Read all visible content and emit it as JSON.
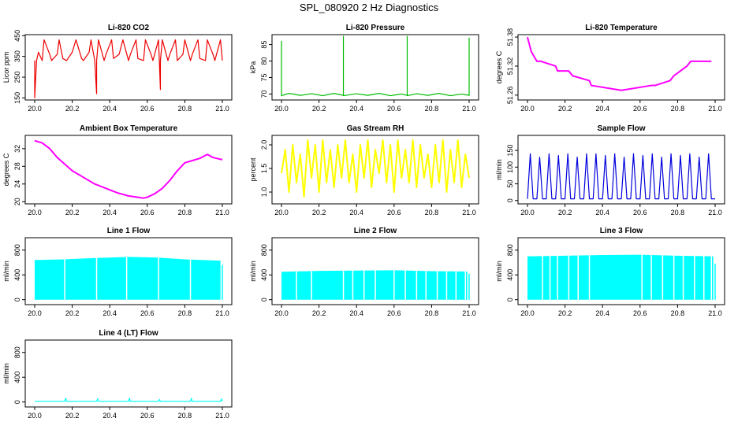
{
  "page": {
    "title": "SPL_080920  2 Hz Diagnostics"
  },
  "colors": {
    "red": "#ee0000",
    "green": "#00bb00",
    "magenta": "#ff00ff",
    "yellow": "#ffff00",
    "blue": "#0000dd",
    "cyan": "#00ffff",
    "axis": "#000000"
  },
  "chart_data": [
    {
      "type": "line",
      "title": "Li-820 CO2",
      "ylabel": "Licor ppm",
      "color": "red",
      "xlim": [
        20.0,
        21.0
      ],
      "x_ticks": [
        "20.0",
        "20.2",
        "20.4",
        "20.6",
        "20.8",
        "21.0"
      ],
      "ylim": [
        140,
        455
      ],
      "y_ticks": [
        "150",
        "250",
        "350",
        "450"
      ],
      "series": [
        {
          "name": "CO2",
          "x": [
            20.0,
            20.0,
            20.01,
            20.02,
            20.04,
            20.05,
            20.08,
            20.09,
            20.12,
            20.13,
            20.15,
            20.17,
            20.2,
            20.22,
            20.25,
            20.26,
            20.29,
            20.3,
            20.32,
            20.33,
            20.33,
            20.34,
            20.37,
            20.38,
            20.41,
            20.42,
            20.45,
            20.47,
            20.5,
            20.51,
            20.54,
            20.55,
            20.58,
            20.59,
            20.62,
            20.63,
            20.66,
            20.67,
            20.67,
            20.68,
            20.71,
            20.72,
            20.75,
            20.76,
            20.79,
            20.8,
            20.83,
            20.84,
            20.87,
            20.88,
            20.91,
            20.92,
            20.95,
            20.96,
            20.99,
            21.0
          ],
          "values": [
            330,
            150,
            330,
            370,
            330,
            430,
            360,
            330,
            360,
            430,
            340,
            330,
            370,
            430,
            340,
            330,
            370,
            430,
            330,
            170,
            330,
            430,
            330,
            360,
            430,
            340,
            360,
            430,
            330,
            360,
            430,
            340,
            330,
            430,
            360,
            330,
            430,
            190,
            330,
            430,
            330,
            360,
            430,
            330,
            360,
            430,
            330,
            360,
            430,
            340,
            330,
            430,
            360,
            330,
            430,
            330
          ]
        }
      ]
    },
    {
      "type": "line",
      "title": "Li-820 Pressure",
      "ylabel": "kPa",
      "color": "green",
      "xlim": [
        20.0,
        21.0
      ],
      "x_ticks": [
        "20.0",
        "20.2",
        "20.4",
        "20.6",
        "20.8",
        "21.0"
      ],
      "ylim": [
        68.2,
        88.0
      ],
      "y_ticks": [
        "70",
        "75",
        "80",
        "85"
      ],
      "series": [
        {
          "name": "Pressure",
          "x": [
            20.0,
            20.0,
            20.0,
            20.04,
            20.1,
            20.16,
            20.22,
            20.28,
            20.33,
            20.33,
            20.33,
            20.4,
            20.46,
            20.52,
            20.58,
            20.64,
            20.67,
            20.67,
            20.67,
            20.72,
            20.78,
            20.84,
            20.9,
            20.96,
            21.0,
            21.0,
            21.0
          ],
          "values": [
            69.5,
            86.0,
            69.5,
            70.2,
            69.6,
            70.1,
            69.5,
            70.2,
            69.6,
            87.5,
            69.5,
            70.1,
            69.6,
            70.2,
            69.5,
            70.0,
            69.6,
            87.5,
            69.5,
            70.1,
            69.6,
            70.2,
            69.5,
            70.0,
            69.6,
            87.0,
            69.5
          ]
        }
      ]
    },
    {
      "type": "line",
      "title": "Li-820 Temperature",
      "ylabel": "degrees C",
      "color": "magenta",
      "xlim": [
        20.0,
        21.0
      ],
      "x_ticks": [
        "20.0",
        "20.2",
        "20.4",
        "20.6",
        "20.8",
        "21.0"
      ],
      "ylim": [
        51.25,
        51.385
      ],
      "y_ticks": [
        "51.26",
        "51.32",
        "51.38"
      ],
      "series": [
        {
          "name": "Temperature",
          "x": [
            20.0,
            20.02,
            20.05,
            20.07,
            20.15,
            20.16,
            20.22,
            20.24,
            20.33,
            20.34,
            20.5,
            20.66,
            20.68,
            20.76,
            20.78,
            20.85,
            20.87,
            20.98
          ],
          "values": [
            51.38,
            51.35,
            51.33,
            51.33,
            51.32,
            51.31,
            51.31,
            51.3,
            51.29,
            51.28,
            51.27,
            51.28,
            51.28,
            51.29,
            51.3,
            51.32,
            51.33,
            51.33
          ]
        }
      ]
    },
    {
      "type": "line",
      "title": "Ambient Box Temperature",
      "ylabel": "degrees C",
      "color": "magenta",
      "xlim": [
        20.0,
        21.0
      ],
      "x_ticks": [
        "20.0",
        "20.2",
        "20.4",
        "20.6",
        "20.8",
        "21.0"
      ],
      "ylim": [
        19.5,
        35.0
      ],
      "y_ticks": [
        "20",
        "24",
        "28",
        "32"
      ],
      "series": [
        {
          "name": "Ambient",
          "x": [
            20.0,
            20.04,
            20.08,
            20.12,
            20.16,
            20.2,
            20.26,
            20.32,
            20.38,
            20.44,
            20.5,
            20.55,
            20.58,
            20.6,
            20.64,
            20.68,
            20.72,
            20.76,
            20.8,
            20.84,
            20.88,
            20.92,
            20.95,
            21.0
          ],
          "values": [
            33.8,
            33.3,
            32.0,
            30.0,
            28.5,
            27.0,
            25.5,
            24.0,
            23.0,
            22.0,
            21.3,
            21.0,
            20.8,
            21.0,
            21.8,
            23.0,
            24.8,
            27.0,
            28.8,
            29.3,
            29.8,
            30.7,
            30.0,
            29.5
          ]
        }
      ]
    },
    {
      "type": "line",
      "title": "Gas Stream RH",
      "ylabel": "percent",
      "color": "yellow",
      "xlim": [
        20.0,
        21.0
      ],
      "x_ticks": [
        "20.0",
        "20.2",
        "20.4",
        "20.6",
        "20.8",
        "21.0"
      ],
      "ylim": [
        0.75,
        2.2
      ],
      "y_ticks": [
        "1.0",
        "1.5",
        "2.0"
      ],
      "series": [
        {
          "name": "RH",
          "x": [
            20.0,
            20.02,
            20.04,
            20.06,
            20.08,
            20.1,
            20.12,
            20.14,
            20.16,
            20.18,
            20.2,
            20.22,
            20.24,
            20.26,
            20.28,
            20.3,
            20.32,
            20.34,
            20.36,
            20.38,
            20.4,
            20.42,
            20.44,
            20.46,
            20.48,
            20.5,
            20.52,
            20.54,
            20.56,
            20.58,
            20.6,
            20.62,
            20.64,
            20.66,
            20.68,
            20.7,
            20.72,
            20.74,
            20.76,
            20.78,
            20.8,
            20.82,
            20.84,
            20.86,
            20.88,
            20.9,
            20.92,
            20.94,
            20.96,
            20.98,
            21.0
          ],
          "values": [
            1.4,
            1.9,
            1.0,
            2.0,
            1.2,
            1.8,
            0.9,
            2.1,
            1.3,
            2.0,
            1.0,
            2.1,
            1.2,
            1.9,
            1.1,
            2.0,
            1.3,
            2.1,
            1.2,
            1.8,
            1.0,
            2.0,
            1.3,
            2.1,
            1.1,
            1.9,
            1.4,
            2.1,
            1.2,
            2.0,
            1.0,
            2.1,
            1.3,
            1.9,
            1.2,
            2.1,
            1.1,
            2.0,
            1.3,
            1.8,
            1.1,
            2.0,
            1.2,
            2.1,
            1.0,
            1.9,
            1.2,
            2.1,
            1.1,
            1.8,
            1.3
          ]
        }
      ]
    },
    {
      "type": "line",
      "title": "Sample Flow",
      "ylabel": "ml/min",
      "color": "blue",
      "xlim": [
        20.0,
        21.0
      ],
      "x_ticks": [
        "20.0",
        "20.2",
        "20.4",
        "20.6",
        "20.8",
        "21.0"
      ],
      "ylim": [
        -10,
        195
      ],
      "y_ticks": [
        "0",
        "50",
        "100",
        "150"
      ],
      "series": [
        {
          "name": "Flow",
          "x": [
            20.0,
            20.015,
            20.03,
            20.05,
            20.065,
            20.08,
            20.1,
            20.115,
            20.13,
            20.15,
            20.165,
            20.18,
            20.2,
            20.215,
            20.23,
            20.25,
            20.265,
            20.28,
            20.3,
            20.315,
            20.33,
            20.35,
            20.365,
            20.38,
            20.4,
            20.415,
            20.43,
            20.45,
            20.465,
            20.48,
            20.5,
            20.515,
            20.53,
            20.55,
            20.565,
            20.58,
            20.6,
            20.615,
            20.63,
            20.65,
            20.665,
            20.68,
            20.7,
            20.715,
            20.73,
            20.75,
            20.765,
            20.78,
            20.8,
            20.815,
            20.83,
            20.85,
            20.865,
            20.88,
            20.9,
            20.915,
            20.93,
            20.95,
            20.965,
            20.98,
            21.0
          ],
          "values": [
            5,
            140,
            5,
            5,
            130,
            5,
            5,
            140,
            5,
            5,
            135,
            5,
            5,
            140,
            5,
            5,
            130,
            5,
            5,
            140,
            5,
            5,
            140,
            5,
            5,
            135,
            5,
            5,
            140,
            5,
            5,
            130,
            5,
            5,
            140,
            5,
            5,
            135,
            5,
            5,
            140,
            5,
            5,
            130,
            5,
            5,
            140,
            5,
            5,
            135,
            5,
            5,
            140,
            5,
            5,
            130,
            5,
            5,
            140,
            5,
            5
          ]
        }
      ]
    },
    {
      "type": "area",
      "title": "Line 1 Flow",
      "ylabel": "ml/min",
      "color": "cyan",
      "xlim": [
        20.0,
        21.0
      ],
      "x_ticks": [
        "20.0",
        "20.2",
        "20.4",
        "20.6",
        "20.8",
        "21.0"
      ],
      "ylim": [
        -80,
        1000
      ],
      "y_ticks": [
        "0",
        "400",
        "800"
      ],
      "series": [
        {
          "name": "Line 1",
          "x": [
            20.0,
            20.15,
            20.3,
            20.5,
            20.65,
            20.8,
            20.99
          ],
          "values": [
            640,
            650,
            670,
            690,
            680,
            650,
            630
          ]
        }
      ],
      "gaps": [
        20.16,
        20.33,
        20.49,
        20.66,
        20.83
      ],
      "end": {
        "x": 21.0,
        "value": 560
      }
    },
    {
      "type": "area",
      "title": "Line 2 Flow",
      "ylabel": "ml/min",
      "color": "cyan",
      "xlim": [
        20.0,
        21.0
      ],
      "x_ticks": [
        "20.0",
        "20.2",
        "20.4",
        "20.6",
        "20.8",
        "21.0"
      ],
      "ylim": [
        -80,
        1000
      ],
      "y_ticks": [
        "0",
        "400",
        "800"
      ],
      "series": [
        {
          "name": "Line 2",
          "x": [
            20.0,
            20.2,
            20.4,
            20.6,
            20.8,
            20.99
          ],
          "values": [
            450,
            465,
            470,
            475,
            460,
            455
          ]
        }
      ],
      "gaps": [
        20.08,
        20.16,
        20.33,
        20.38,
        20.44,
        20.5,
        20.6,
        20.66,
        20.72,
        20.77,
        20.83,
        20.88,
        20.93,
        20.98
      ],
      "end": {
        "x": 21.0,
        "value": 420
      }
    },
    {
      "type": "area",
      "title": "Line 3 Flow",
      "ylabel": "ml/min",
      "color": "cyan",
      "xlim": [
        20.0,
        21.0
      ],
      "x_ticks": [
        "20.0",
        "20.2",
        "20.4",
        "20.6",
        "20.8",
        "21.0"
      ],
      "ylim": [
        -80,
        1000
      ],
      "y_ticks": [
        "0",
        "400",
        "800"
      ],
      "series": [
        {
          "name": "Line 3",
          "x": [
            20.0,
            20.2,
            20.4,
            20.6,
            20.8,
            20.99
          ],
          "values": [
            700,
            710,
            720,
            725,
            710,
            700
          ]
        }
      ],
      "gaps": [
        20.08,
        20.12,
        20.16,
        20.22,
        20.27,
        20.33,
        20.61,
        20.66,
        20.72,
        20.78,
        20.83,
        20.89,
        20.94,
        20.98
      ],
      "end": {
        "x": 21.0,
        "value": 580
      }
    },
    {
      "type": "line",
      "title": "Line 4 (LT) Flow",
      "ylabel": "ml/min",
      "color": "cyan",
      "xlim": [
        20.0,
        21.0
      ],
      "x_ticks": [
        "20.0",
        "20.2",
        "20.4",
        "20.6",
        "20.8",
        "21.0"
      ],
      "ylim": [
        -80,
        1000
      ],
      "y_ticks": [
        "0",
        "400",
        "800"
      ],
      "series": [
        {
          "name": "Line 4",
          "x": [
            20.0,
            20.16,
            20.165,
            20.17,
            20.33,
            20.335,
            20.34,
            20.5,
            20.505,
            20.51,
            20.66,
            20.665,
            20.67,
            20.83,
            20.835,
            20.84,
            20.99,
            20.995,
            21.0
          ],
          "values": [
            10,
            10,
            60,
            10,
            10,
            50,
            10,
            10,
            60,
            10,
            10,
            40,
            10,
            10,
            60,
            10,
            10,
            50,
            10
          ]
        }
      ]
    }
  ]
}
